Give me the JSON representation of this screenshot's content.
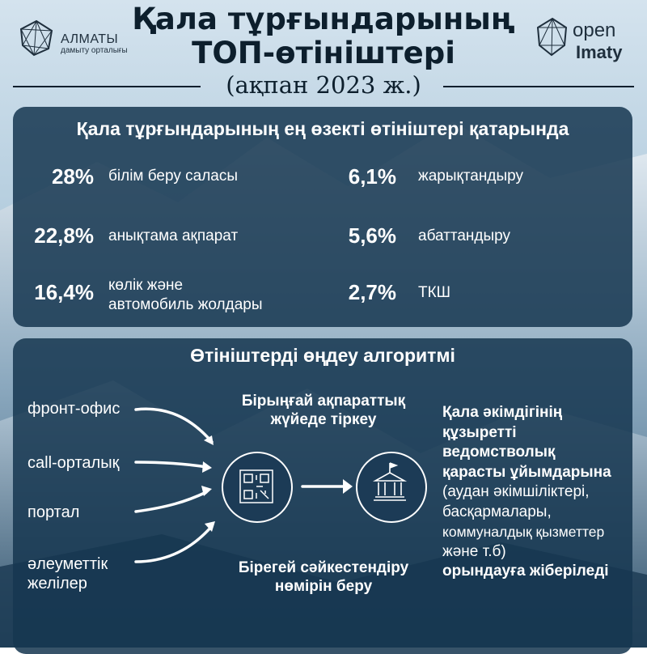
{
  "header": {
    "title_line1": "Қала тұрғындарының",
    "title_line2": "ТОП-өтініштері",
    "subtitle": "(ақпан 2023 ж.)"
  },
  "logo_left": {
    "name": "АЛМАТЫ",
    "tagline": "дамыту орталығы"
  },
  "logo_right": {
    "word1": "open",
    "word2": "Imaty"
  },
  "top_requests": {
    "title": "Қала тұрғындарының ең өзекті өтініштері қатарында",
    "items": [
      {
        "percent": "28%",
        "label": "білім беру саласы"
      },
      {
        "percent": "22,8%",
        "label": "анықтама ақпарат"
      },
      {
        "percent": "16,4%",
        "label_line1": "көлік және",
        "label_line2": "автомобиль жолдары"
      },
      {
        "percent": "6,1%",
        "label": "жарықтандыру"
      },
      {
        "percent": "5,6%",
        "label": "абаттандыру"
      },
      {
        "percent": "2,7%",
        "label": "ТКШ"
      }
    ]
  },
  "algorithm": {
    "title": "Өтініштерді өңдеу алгоритмі",
    "sources": [
      "фронт-офис",
      "call-орталық",
      "портал"
    ],
    "social_line1": "әлеуметтік",
    "social_line2": "желілер",
    "register_line1": "Бірыңғай ақпараттық",
    "register_line2": "жүйеде тіркеу",
    "number_line1": "Бірегей сәйкестендіру",
    "number_line2": "нөмірін беру",
    "dest_lines_bold": [
      "Қала әкімдігінің",
      "құзыретті",
      "ведомстволық",
      "қарасты ұйымдарына"
    ],
    "dest_lines_regular": [
      "(аудан әкімшіліктері,",
      "басқармалары,",
      "коммуналдық қызметтер",
      "және т.б)"
    ],
    "dest_final": "орындауға жіберіледі"
  },
  "colors": {
    "panel": "#163750",
    "title_dark": "#0d1f2d",
    "sky_top": "#cfe0ec",
    "sky_bottom": "#8fb2c8"
  }
}
